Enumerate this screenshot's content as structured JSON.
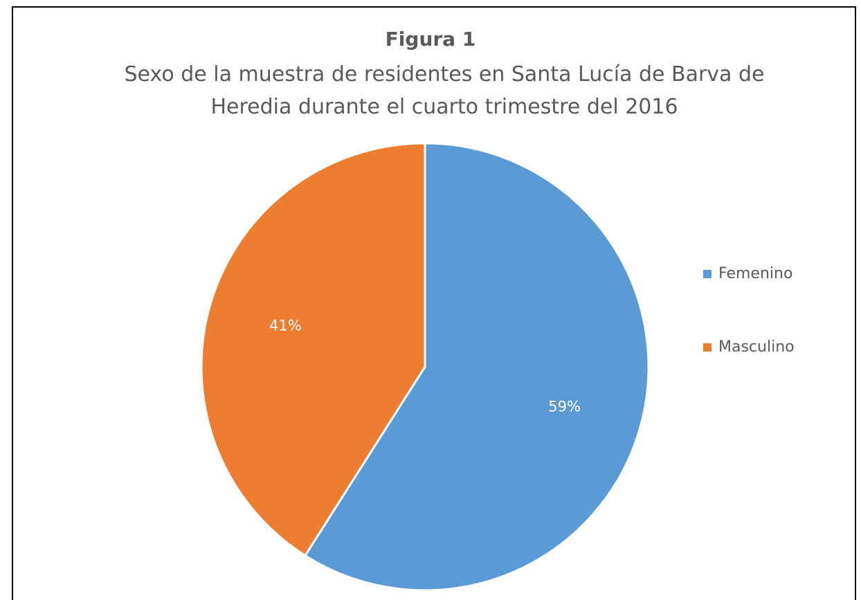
{
  "chart_data": {
    "type": "pie",
    "title": "Figura 1",
    "subtitle": "Sexo de la muestra de residentes en Santa Lucía de Barva de Heredia durante el cuarto trimestre del 2016",
    "categories": [
      "Femenino",
      "Masculino"
    ],
    "values": [
      59,
      41
    ],
    "value_labels": [
      "59%",
      "41%"
    ],
    "colors": [
      "#5b9bd5",
      "#ed7d31"
    ],
    "legend": "right"
  }
}
